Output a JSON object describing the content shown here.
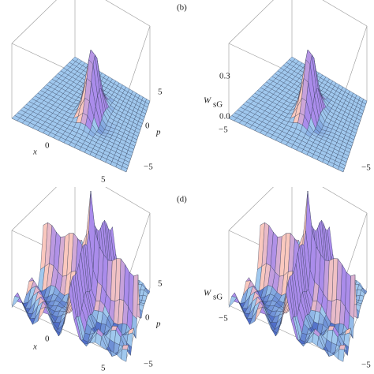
{
  "panels": [
    {
      "x_label": "x",
      "x_ticks": [
        "0",
        "5"
      ],
      "p_label": "p",
      "p_ticks": [
        "5",
        "0",
        "−5"
      ]
    },
    {
      "label": "(b)",
      "z_label": "W",
      "z_label_sub": "sG",
      "z_ticks": [
        "0.3",
        "0.0"
      ],
      "x_ticks": [
        "−5"
      ],
      "p_ticks": [
        "−5"
      ]
    },
    {
      "x_label": "x",
      "x_ticks": [
        "0",
        "5"
      ],
      "p_label": "p",
      "p_ticks": [
        "5",
        "0",
        "−5"
      ]
    },
    {
      "label": "(d)",
      "z_label": "W",
      "z_label_sub": "sG",
      "x_ticks": [
        "−5"
      ],
      "p_ticks": [
        "−5"
      ]
    }
  ]
}
